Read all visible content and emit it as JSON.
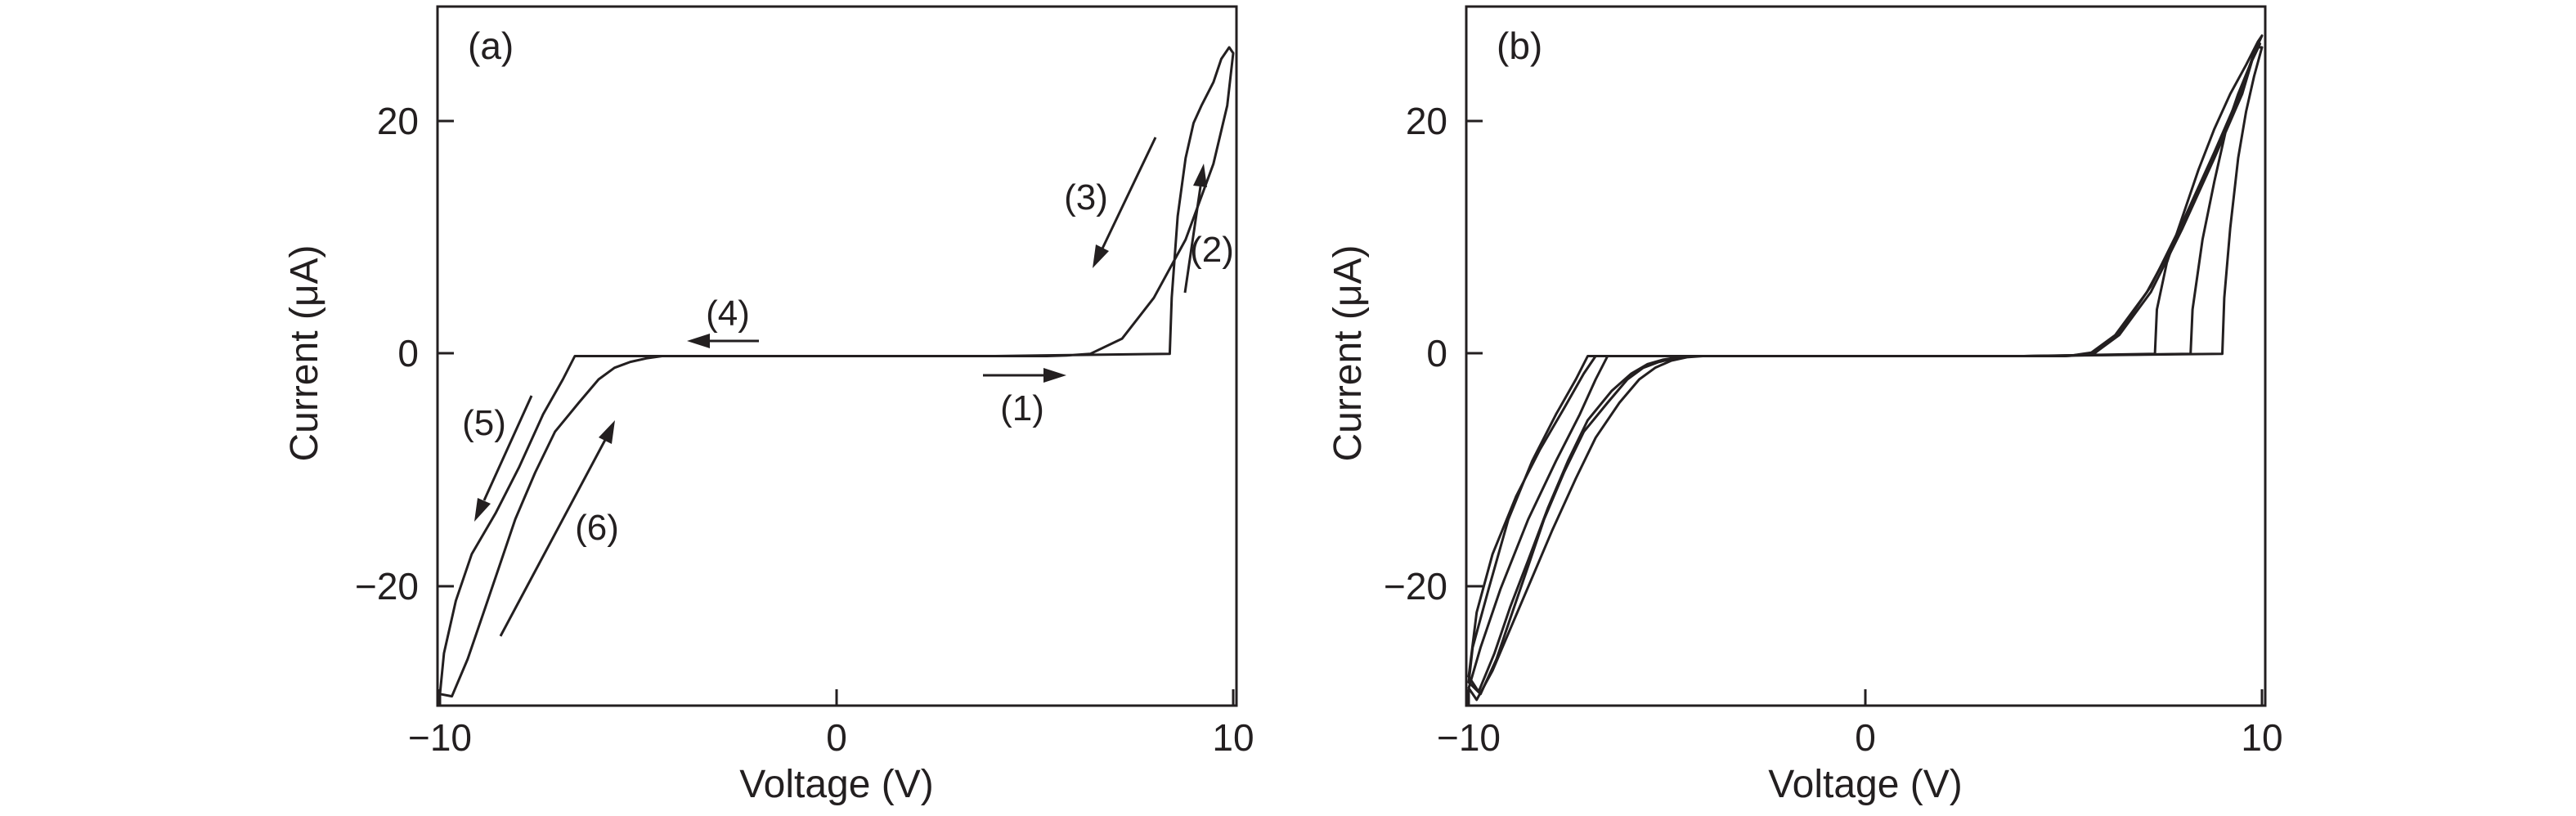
{
  "chart_data": [
    {
      "type": "line",
      "panel_label": "(a)",
      "xlabel": "Voltage (V)",
      "ylabel": "Current (μA)",
      "xlim": [
        -10,
        10
      ],
      "ylim": [
        -30,
        30
      ],
      "xticks": [
        -10,
        0,
        10
      ],
      "xtick_labels": [
        "−10",
        "0",
        "10"
      ],
      "yticks": [
        -20,
        0,
        20
      ],
      "ytick_labels": [
        "−20",
        "0",
        "20"
      ],
      "grid": false,
      "legend": false,
      "series": [
        {
          "x": [
            0,
            4,
            8.4,
            8.45,
            8.6,
            8.8,
            9.0,
            9.2,
            9.5,
            9.7,
            9.9,
            10.0,
            9.85,
            9.5,
            8.8,
            8.0,
            7.2,
            6.4,
            5.8,
            5.3,
            5.0,
            4.6,
            4.0,
            2.0,
            0,
            -2,
            -4,
            -6.6,
            -6.9,
            -7.4,
            -8.0,
            -8.6,
            -9.2,
            -9.6,
            -9.9,
            -10.0,
            -9.7,
            -9.3,
            -8.9,
            -8.5,
            -8.1,
            -7.6,
            -7.1,
            -6.5,
            -6.0,
            -5.6,
            -5.2,
            -4.8,
            -4.4,
            -4.0,
            -3.0,
            -2.0,
            -1.0,
            0
          ],
          "y": [
            0,
            0,
            0.2,
            5,
            12,
            17,
            20,
            21.5,
            23.5,
            25.5,
            26.5,
            26,
            21.5,
            16.5,
            10,
            5,
            1.5,
            0.2,
            0.05,
            0,
            0,
            0,
            0,
            0,
            0,
            0,
            0,
            0,
            -2,
            -5,
            -9.5,
            -13.5,
            -17,
            -21,
            -25.5,
            -29,
            -29.2,
            -26,
            -22,
            -18,
            -14,
            -10,
            -6.5,
            -4,
            -2,
            -1,
            -0.5,
            -0.2,
            0,
            0,
            0,
            0,
            0,
            0
          ]
        }
      ],
      "annotations": [
        "(1)",
        "(2)",
        "(3)",
        "(4)",
        "(5)",
        "(6)"
      ]
    },
    {
      "type": "line",
      "panel_label": "(b)",
      "xlabel": "Voltage (V)",
      "ylabel": "Current (μA)",
      "xlim": [
        -10,
        10
      ],
      "ylim": [
        -30,
        30
      ],
      "xticks": [
        -10,
        0,
        10
      ],
      "xtick_labels": [
        "−10",
        "0",
        "10"
      ],
      "yticks": [
        -20,
        0,
        20
      ],
      "ytick_labels": [
        "−20",
        "0",
        "20"
      ],
      "grid": false,
      "legend": false,
      "series": [
        {
          "x": [
            0,
            4,
            9.0,
            9.05,
            9.2,
            9.4,
            9.6,
            9.8,
            10.0,
            9.85,
            9.5,
            8.8,
            8.0,
            7.2,
            6.4,
            5.8,
            5.3,
            5.0,
            4.6,
            4.0,
            2.0,
            0,
            -2,
            -4,
            -7.0,
            -7.3,
            -7.8,
            -8.4,
            -9.0,
            -9.5,
            -9.9,
            -10.0,
            -9.7,
            -9.3,
            -8.9,
            -8.5,
            -8.1,
            -7.6,
            -7.1,
            -6.5,
            -6.0,
            -5.6,
            -5.2,
            -4.8,
            -4.4,
            -4.0,
            -3.0,
            -2.0,
            -1.0,
            0
          ],
          "y": [
            0,
            0,
            0.2,
            5,
            11,
            17,
            21,
            24,
            26.5,
            26.5,
            23,
            17.5,
            11.5,
            6,
            2,
            0.3,
            0.05,
            0,
            0,
            0,
            0,
            0,
            0,
            0,
            0,
            -2,
            -5,
            -9,
            -14,
            -20,
            -25,
            -28,
            -29,
            -26,
            -22,
            -18,
            -14,
            -10,
            -6.5,
            -4,
            -2,
            -1,
            -0.5,
            -0.2,
            0,
            0,
            0,
            0,
            0,
            0
          ]
        },
        {
          "x": [
            0,
            4,
            7.3,
            7.35,
            7.6,
            8.0,
            8.4,
            8.8,
            9.2,
            9.6,
            9.9,
            10.0,
            9.8,
            9.4,
            8.7,
            7.9,
            7.1,
            6.3,
            5.7,
            5.2,
            4.9,
            4.5,
            4.0,
            2.0,
            0,
            -2,
            -4,
            -6.5,
            -6.8,
            -7.2,
            -7.8,
            -8.5,
            -9.2,
            -9.7,
            -10.0,
            -9.8,
            -9.4,
            -8.9,
            -8.4,
            -7.9,
            -7.3,
            -6.8,
            -6.2,
            -5.7,
            -5.3,
            -4.9,
            -4.5,
            -4.1,
            -3.0,
            -2.0,
            -1.0,
            0
          ],
          "y": [
            0,
            0,
            0.2,
            4,
            8,
            12,
            16,
            19.5,
            22.5,
            25,
            27,
            27.5,
            26,
            22,
            16.5,
            10.5,
            5.5,
            1.8,
            0.3,
            0.05,
            0,
            0,
            0,
            0,
            0,
            0,
            0,
            0,
            -2,
            -5,
            -9,
            -14,
            -20,
            -25,
            -28.5,
            -29.5,
            -27,
            -23,
            -19,
            -15,
            -10.5,
            -7,
            -4,
            -2,
            -1,
            -0.4,
            -0.1,
            0,
            0,
            0,
            0,
            0
          ]
        },
        {
          "x": [
            0,
            4,
            8.2,
            8.25,
            8.5,
            8.8,
            9.1,
            9.4,
            9.7,
            9.95,
            9.85,
            9.5,
            8.8,
            8.0,
            7.2,
            6.4,
            5.8,
            5.3,
            5.0,
            4.6,
            4.0,
            2.0,
            0,
            -2,
            -4,
            -6.8,
            -7.1,
            -7.6,
            -8.2,
            -8.8,
            -9.4,
            -9.8,
            -10.0,
            -9.75,
            -9.35,
            -8.95,
            -8.5,
            -8.0,
            -7.5,
            -7.0,
            -6.4,
            -5.9,
            -5.5,
            -5.1,
            -4.7,
            -4.3,
            -4.0,
            -3.0,
            -2.0,
            0
          ],
          "y": [
            0,
            0,
            0.2,
            4,
            10,
            15,
            19.5,
            22.5,
            25,
            26.8,
            26.5,
            22.5,
            17,
            11,
            5.5,
            1.8,
            0.3,
            0.05,
            0,
            0,
            0,
            0,
            0,
            0,
            0,
            0,
            -1.5,
            -4.5,
            -8,
            -12,
            -17,
            -22,
            -27.5,
            -28.8,
            -25.5,
            -21.5,
            -17.5,
            -13,
            -9,
            -5.5,
            -3,
            -1.5,
            -0.7,
            -0.3,
            -0.1,
            0,
            0,
            0,
            0,
            0
          ]
        }
      ],
      "annotations": []
    }
  ]
}
